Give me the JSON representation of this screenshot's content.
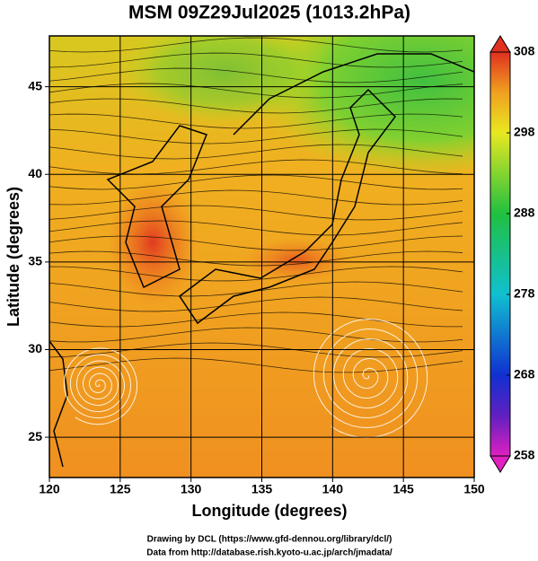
{
  "title": "MSM 09Z29Jul2025 (1013.2hPa)",
  "x_axis": {
    "label": "Longitude (degrees)",
    "lim": [
      120,
      150
    ],
    "ticks": [
      120,
      125,
      130,
      135,
      140,
      145,
      150
    ]
  },
  "y_axis": {
    "label": "Latitude  (degrees)",
    "lim": [
      22.7,
      47.9
    ],
    "ticks": [
      25,
      30,
      35,
      40,
      45
    ]
  },
  "colorbar": {
    "lim": [
      258,
      308
    ],
    "ticks": [
      258,
      268,
      278,
      288,
      298,
      308
    ]
  },
  "credits": [
    "Drawing by DCL (https://www.gfd-dennou.org/library/dcl/)",
    "Data from http://database.rish.kyoto-u.ac.jp/arch/jmadata/"
  ]
}
